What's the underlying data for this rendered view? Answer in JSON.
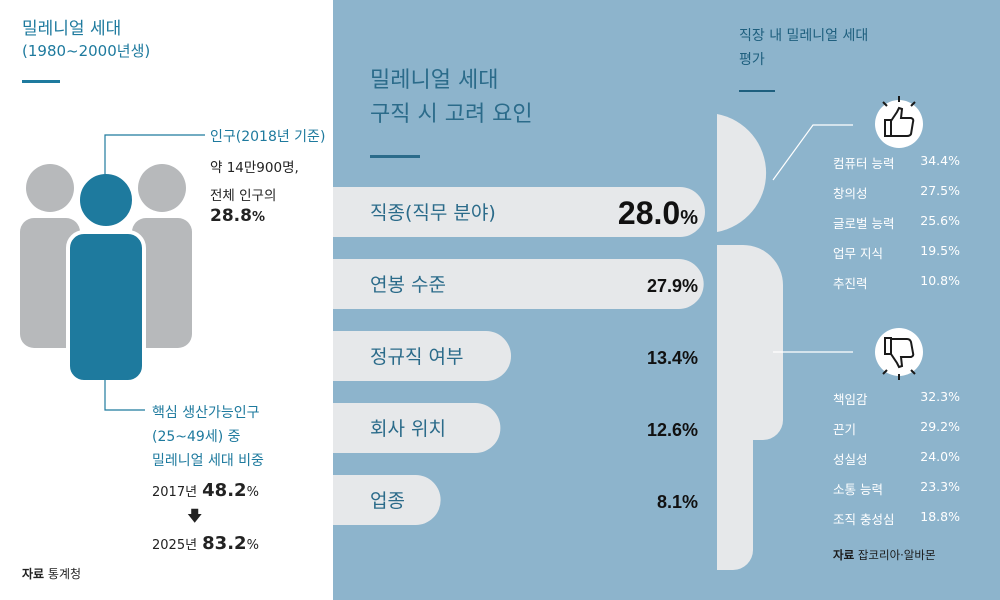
{
  "left": {
    "title": "밀레니얼 세대",
    "subtitle": "(1980~2000년생)",
    "population": {
      "heading": "인구(2018년 기준)",
      "line1": "약 14만900명,",
      "line2": "전체 인구의",
      "value": "28.8",
      "unit": "%"
    },
    "core": {
      "line1": "핵심 생산가능인구",
      "line2": "(25~49세) 중",
      "line3": "밀레니얼 세대 비중",
      "year1": "2017년",
      "value1": "48.2",
      "year2": "2025년",
      "value2": "83.2",
      "unit": "%",
      "arrow": "down-arrow-icon"
    },
    "source_label": "자료",
    "source_text": "통계청"
  },
  "center": {
    "title_line1": "밀레니얼 세대",
    "title_line2": "구직 시 고려 요인"
  },
  "right": {
    "title_line1": "직장 내 밀레니얼 세대",
    "title_line2": "평가",
    "source_label": "자료",
    "source_text": "잡코리아·알바몬"
  },
  "colors": {
    "panel": "#8db4cc",
    "teal": "#1e7a9e",
    "bar": "#e6e8ea",
    "figure_gray": "#b7b9bb",
    "figure_teal": "#1e7a9e"
  },
  "chart_data": [
    {
      "type": "bar",
      "title": "밀레니얼 세대 구직 시 고려 요인",
      "categories": [
        "직종(직무 분야)",
        "연봉 수준",
        "정규직 여부",
        "회사 위치",
        "업종"
      ],
      "values": [
        28.0,
        27.9,
        13.4,
        12.6,
        8.1
      ],
      "value_labels": [
        "28.0",
        "27.9%",
        "13.4%",
        "12.6%",
        "8.1%"
      ],
      "unit": "%"
    },
    {
      "type": "table",
      "title": "직장 내 밀레니얼 세대 평가",
      "groups": [
        {
          "icon": "thumbs-up-icon",
          "items": [
            {
              "name": "컴퓨터 능력",
              "value": "34.4%"
            },
            {
              "name": "창의성",
              "value": "27.5%"
            },
            {
              "name": "글로벌 능력",
              "value": "25.6%"
            },
            {
              "name": "업무 지식",
              "value": "19.5%"
            },
            {
              "name": "추진력",
              "value": "10.8%"
            }
          ]
        },
        {
          "icon": "thumbs-down-icon",
          "items": [
            {
              "name": "책임감",
              "value": "32.3%"
            },
            {
              "name": "끈기",
              "value": "29.2%"
            },
            {
              "name": "성실성",
              "value": "24.0%"
            },
            {
              "name": "소통 능력",
              "value": "23.3%"
            },
            {
              "name": "조직 충성심",
              "value": "18.8%"
            }
          ]
        }
      ]
    }
  ]
}
